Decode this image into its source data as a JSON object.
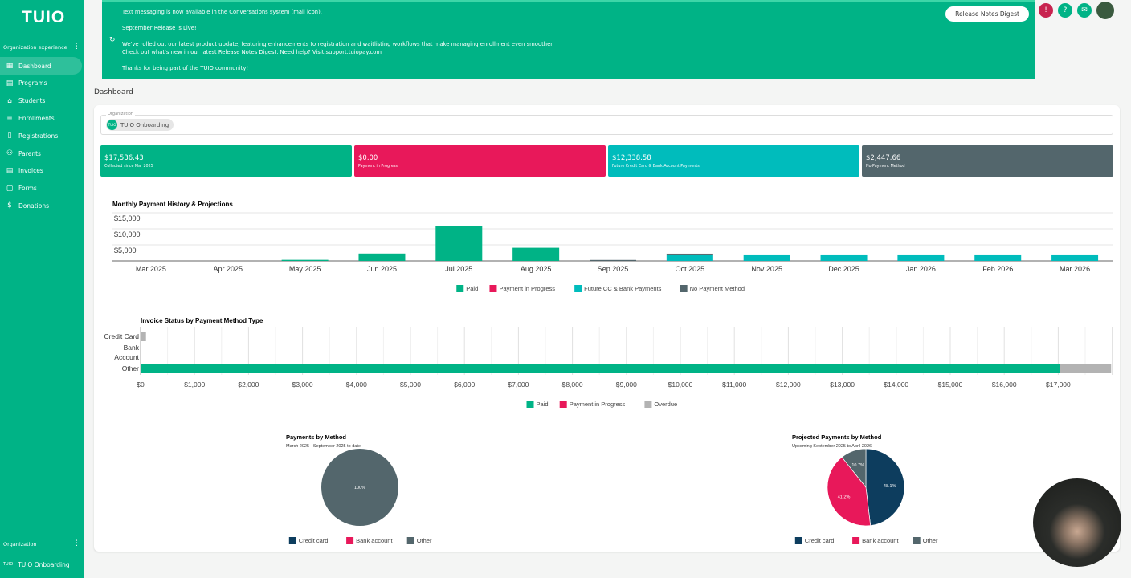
{
  "sidebar": {
    "logo": "TUIO",
    "section": "Organization experience",
    "items": [
      {
        "label": "Dashboard",
        "icon": "dashboard-icon",
        "glyph": "▦"
      },
      {
        "label": "Programs",
        "icon": "clipboard-icon",
        "glyph": "▤"
      },
      {
        "label": "Students",
        "icon": "graduation-cap-icon",
        "glyph": "⌂"
      },
      {
        "label": "Enrollments",
        "icon": "list-icon",
        "glyph": "≡"
      },
      {
        "label": "Registrations",
        "icon": "document-icon",
        "glyph": "▯"
      },
      {
        "label": "Parents",
        "icon": "people-icon",
        "glyph": "⚇"
      },
      {
        "label": "Invoices",
        "icon": "invoice-icon",
        "glyph": "▤"
      },
      {
        "label": "Forms",
        "icon": "form-icon",
        "glyph": "▢"
      },
      {
        "label": "Donations",
        "icon": "dollar-icon",
        "glyph": "$"
      }
    ],
    "org_section": "Organization",
    "org_badge": "TUIO",
    "org_name": "TUIO Onboarding"
  },
  "banner": {
    "lines": [
      "Text messaging is now available in the Conversations system (mail icon).",
      "September Release is Live!",
      "We've rolled out our latest product update, featuring enhancements to registration and waitlisting workflows that make managing enrollment even smoother.",
      "Check out what's new in our latest Release Notes Digest. Need help? Visit support.tuiopay.com",
      "Thanks for being part of the TUIO community!"
    ],
    "button": "Release Notes Digest"
  },
  "page_title": "Dashboard",
  "org_field": {
    "label": "Organization",
    "badge": "TUIO",
    "value": "TUIO Onboarding"
  },
  "stats": [
    {
      "value": "$17,536.43",
      "label": "Collected since Mar 2025",
      "color": "#00b386"
    },
    {
      "value": "$0.00",
      "label": "Payment in Progress",
      "color": "#e8185a"
    },
    {
      "value": "$12,338.58",
      "label": "Future Credit Card & Bank Account Payments",
      "color": "#00bcbc"
    },
    {
      "value": "$2,447.66",
      "label": "No Payment Method",
      "color": "#53666c"
    }
  ],
  "colors": {
    "paid": "#00b386",
    "progress": "#e8185a",
    "future": "#00bcbc",
    "none": "#53666c",
    "overdue": "#b3b3b3",
    "cc": "#0d3d5e",
    "bank": "#e8185a",
    "other": "#53666c"
  },
  "chart_data": [
    {
      "type": "bar",
      "title": "Monthly Payment History & Projections",
      "stacked": true,
      "ylim": [
        0,
        15000
      ],
      "yticks": [
        "$5,000",
        "$10,000",
        "$15,000"
      ],
      "ytick_values": [
        5000,
        10000,
        15000
      ],
      "categories": [
        "Mar 2025",
        "Apr 2025",
        "May 2025",
        "Jun 2025",
        "Jul 2025",
        "Aug 2025",
        "Sep 2025",
        "Oct 2025",
        "Nov 2025",
        "Dec 2025",
        "Jan 2026",
        "Feb 2026",
        "Mar 2026"
      ],
      "series": [
        {
          "name": "Paid",
          "key": "paid",
          "values": [
            0,
            0,
            336,
            2300,
            10800,
            4100,
            0,
            0,
            0,
            0,
            0,
            0,
            0
          ]
        },
        {
          "name": "Payment in Progress",
          "key": "progress",
          "values": [
            0,
            0,
            0,
            0,
            0,
            0,
            0,
            0,
            0,
            0,
            0,
            0,
            0
          ]
        },
        {
          "name": "Future CC & Bank Payments",
          "key": "future",
          "values": [
            0,
            0,
            0,
            0,
            0,
            0,
            0,
            1760,
            1763,
            1763,
            1763,
            1763,
            1763
          ]
        },
        {
          "name": "No Payment Method",
          "key": "none",
          "values": [
            0,
            0,
            0,
            0,
            0,
            0,
            300,
            500,
            0,
            0,
            0,
            0,
            0
          ]
        }
      ],
      "legend": "bottom"
    },
    {
      "type": "bar",
      "orientation": "horizontal",
      "title": "Invoice Status by Payment Method Type",
      "stacked": true,
      "xlim": [
        0,
        18000
      ],
      "categories": [
        "Credit Card",
        "Bank Account",
        "Other"
      ],
      "xticks": [
        "$0",
        "$1,000",
        "$2,000",
        "$3,000",
        "$4,000",
        "$5,000",
        "$6,000",
        "$7,000",
        "$8,000",
        "$9,000",
        "$10,000",
        "$11,000",
        "$12,000",
        "$13,000",
        "$14,000",
        "$15,000",
        "$16,000",
        "$17,000"
      ],
      "series": [
        {
          "name": "Paid",
          "key": "paid",
          "values": [
            0,
            0,
            17030
          ]
        },
        {
          "name": "Payment in Progress",
          "key": "progress",
          "values": [
            0,
            0,
            0
          ]
        },
        {
          "name": "Overdue",
          "key": "overdue",
          "values": [
            100,
            0,
            950
          ]
        }
      ],
      "legend": "bottom"
    },
    {
      "type": "pie",
      "title": "Payments by Method",
      "subtitle": "March 2025 - September 2025 to date",
      "slices": [
        {
          "name": "Credit card",
          "key": "cc",
          "value": 0,
          "label": ""
        },
        {
          "name": "Bank account",
          "key": "bank",
          "value": 0,
          "label": ""
        },
        {
          "name": "Other",
          "key": "other",
          "value": 100,
          "label": "100%"
        }
      ]
    },
    {
      "type": "pie",
      "title": "Projected Payments by Method",
      "subtitle": "Upcoming September 2025 to April 2026",
      "slices": [
        {
          "name": "Credit card",
          "key": "cc",
          "value": 48.1,
          "label": "48.1%"
        },
        {
          "name": "Bank account",
          "key": "bank",
          "value": 41.2,
          "label": "41.2%"
        },
        {
          "name": "Other",
          "key": "other",
          "value": 10.7,
          "label": "10.7%"
        }
      ]
    }
  ]
}
